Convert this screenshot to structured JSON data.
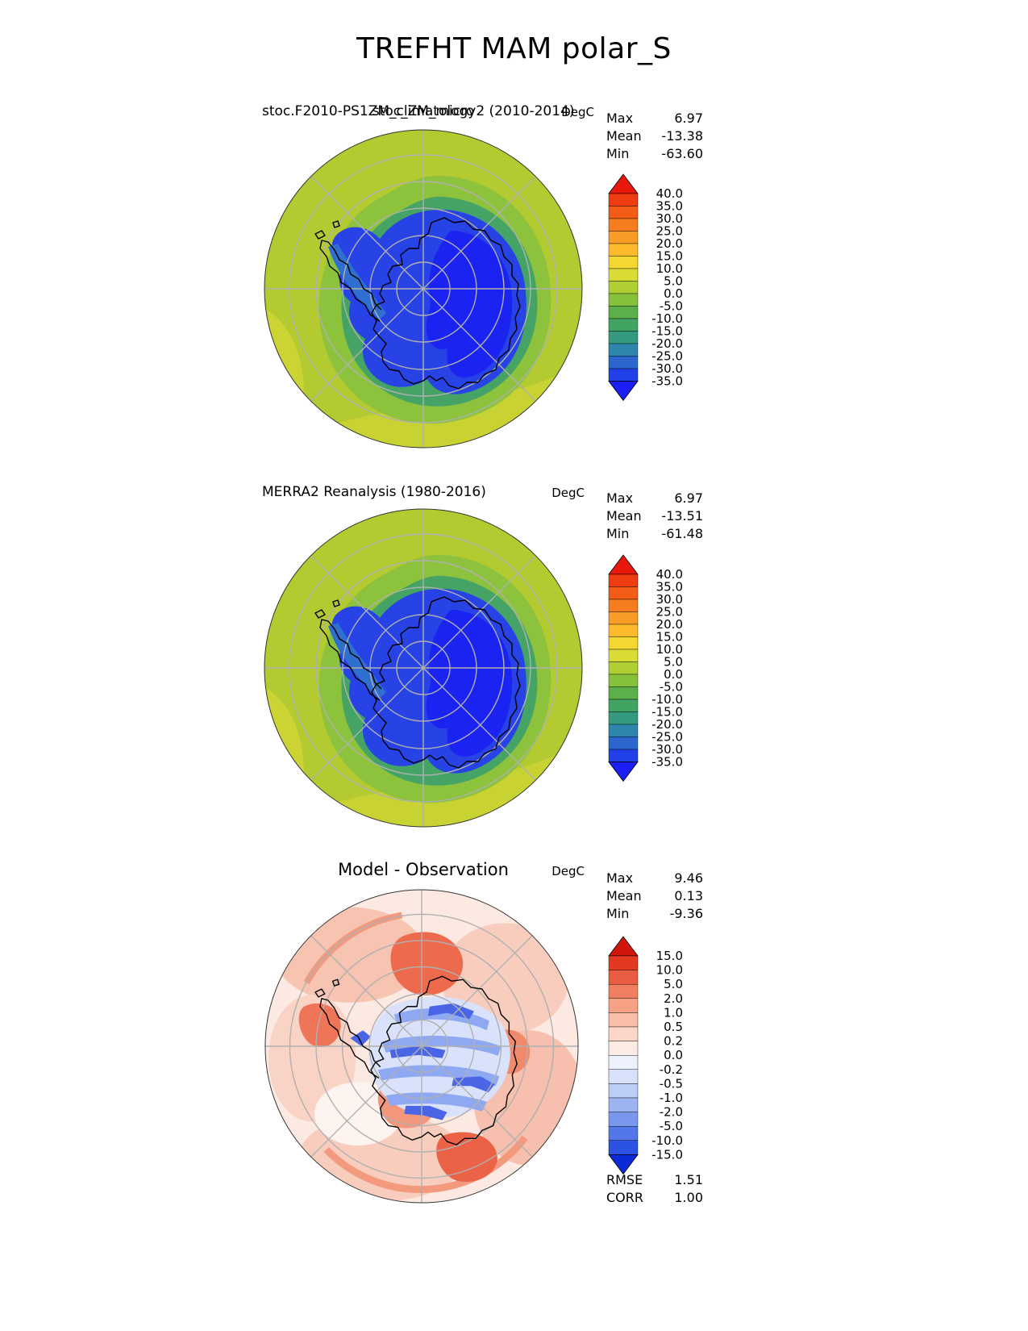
{
  "figure": {
    "title": "TREFHT MAM polar_S"
  },
  "panels": [
    {
      "id": "model",
      "title": "stoc.F2010-PS1ZM_climatology2 (2010-2014)",
      "overlay_title": "stoc_ZM_micro",
      "units": "DegC",
      "stats": [
        {
          "label": "Max",
          "value": "6.97"
        },
        {
          "label": "Mean",
          "value": "-13.38"
        },
        {
          "label": "Min",
          "value": "-63.60"
        }
      ],
      "colorbar": {
        "seg_h": 15.5,
        "ticks": [
          "40.0",
          "35.0",
          "30.0",
          "25.0",
          "20.0",
          "15.0",
          "10.0",
          "5.0",
          "0.0",
          "-5.0",
          "-10.0",
          "-15.0",
          "-20.0",
          "-25.0",
          "-30.0",
          "-35.0"
        ],
        "colors": [
          "#e8190b",
          "#ee3b10",
          "#f35c16",
          "#f67c1d",
          "#f99c25",
          "#fbbb2c",
          "#f5d732",
          "#d8dc35",
          "#b0cf33",
          "#86c13c",
          "#5cb04a",
          "#42a463",
          "#369a80",
          "#2f86ad",
          "#2a66cc",
          "#2140e8",
          "#1b1ef5"
        ]
      }
    },
    {
      "id": "reference",
      "title": "MERRA2 Reanalysis (1980-2016)",
      "units": "DegC",
      "stats": [
        {
          "label": "Max",
          "value": "6.97"
        },
        {
          "label": "Mean",
          "value": "-13.51"
        },
        {
          "label": "Min",
          "value": "-61.48"
        }
      ],
      "colorbar": {
        "seg_h": 15.5,
        "ticks": [
          "40.0",
          "35.0",
          "30.0",
          "25.0",
          "20.0",
          "15.0",
          "10.0",
          "5.0",
          "0.0",
          "-5.0",
          "-10.0",
          "-15.0",
          "-20.0",
          "-25.0",
          "-30.0",
          "-35.0"
        ],
        "colors": [
          "#e8190b",
          "#ee3b10",
          "#f35c16",
          "#f67c1d",
          "#f99c25",
          "#fbbb2c",
          "#f5d732",
          "#d8dc35",
          "#b0cf33",
          "#86c13c",
          "#5cb04a",
          "#42a463",
          "#369a80",
          "#2f86ad",
          "#2a66cc",
          "#2140e8",
          "#1b1ef5"
        ]
      }
    },
    {
      "id": "difference",
      "title": "Model - Observation",
      "units": "DegC",
      "stats": [
        {
          "label": "Max",
          "value": "9.46"
        },
        {
          "label": "Mean",
          "value": "0.13"
        },
        {
          "label": "Min",
          "value": "-9.36"
        }
      ],
      "colorbar": {
        "seg_h": 17.6,
        "ticks": [
          "15.0",
          "10.0",
          "5.0",
          "2.0",
          "1.0",
          "0.5",
          "0.2",
          "0.0",
          "-0.2",
          "-0.5",
          "-1.0",
          "-2.0",
          "-5.0",
          "-10.0",
          "-15.0"
        ],
        "colors": [
          "#d1160c",
          "#e23920",
          "#ea5c41",
          "#f07f62",
          "#f5a183",
          "#f9bfa8",
          "#fbd6c8",
          "#fcebe4",
          "#ecf1fc",
          "#d7e2fa",
          "#bccdf7",
          "#9db4f3",
          "#7a97ee",
          "#5377e8",
          "#2b52e2",
          "#0d2ad8"
        ]
      },
      "metrics": [
        {
          "label": "RMSE",
          "value": "1.51"
        },
        {
          "label": "CORR",
          "value": "1.00"
        }
      ]
    }
  ],
  "chart_data": [
    {
      "type": "heatmap",
      "subtype": "south-polar-stereographic-map",
      "variable": "TREFHT",
      "season": "MAM",
      "region": "polar_S",
      "title": "stoc.F2010-PS1ZM_climatology2 (2010-2014)",
      "overlay_title": "stoc_ZM_micro",
      "units": "DegC",
      "stats": {
        "max": 6.97,
        "mean": -13.38,
        "min": -63.6
      },
      "contour_levels": [
        -35,
        -30,
        -25,
        -20,
        -15,
        -10,
        -5,
        0,
        5,
        10,
        15,
        20,
        25,
        30,
        35,
        40
      ],
      "colormap_top_to_bottom": [
        "#e8190b",
        "#ee3b10",
        "#f35c16",
        "#f67c1d",
        "#f99c25",
        "#fbbb2c",
        "#f5d732",
        "#d8dc35",
        "#b0cf33",
        "#86c13c",
        "#5cb04a",
        "#42a463",
        "#369a80",
        "#2f86ad",
        "#2a66cc",
        "#2140e8",
        "#1b1ef5"
      ],
      "legend_position": "right",
      "features": "Antarctic continent below -35 DegC (blue), surrounding Southern Ocean 0-5 DegC (yellow-green), graticule circles and 45-degree meridians in gray, black coastline"
    },
    {
      "type": "heatmap",
      "subtype": "south-polar-stereographic-map",
      "variable": "TREFHT",
      "season": "MAM",
      "region": "polar_S",
      "title": "MERRA2 Reanalysis (1980-2016)",
      "units": "DegC",
      "stats": {
        "max": 6.97,
        "mean": -13.51,
        "min": -61.48
      },
      "contour_levels": [
        -35,
        -30,
        -25,
        -20,
        -15,
        -10,
        -5,
        0,
        5,
        10,
        15,
        20,
        25,
        30,
        35,
        40
      ],
      "colormap_top_to_bottom": [
        "#e8190b",
        "#ee3b10",
        "#f35c16",
        "#f67c1d",
        "#f99c25",
        "#fbbb2c",
        "#f5d732",
        "#d8dc35",
        "#b0cf33",
        "#86c13c",
        "#5cb04a",
        "#42a463",
        "#369a80",
        "#2f86ad",
        "#2a66cc",
        "#2140e8",
        "#1b1ef5"
      ],
      "legend_position": "right",
      "features": "Same spatial pattern as model panel: cold blue Antarctic interior, yellow-green ocean ring"
    },
    {
      "type": "heatmap",
      "subtype": "south-polar-stereographic-difference-map",
      "variable": "TREFHT model minus observation",
      "season": "MAM",
      "region": "polar_S",
      "title": "Model - Observation",
      "units": "DegC",
      "stats": {
        "max": 9.46,
        "mean": 0.13,
        "min": -9.36
      },
      "metrics": {
        "rmse": 1.51,
        "corr": 1.0
      },
      "contour_levels": [
        -15,
        -10,
        -5,
        -2,
        -1,
        -0.5,
        -0.2,
        0,
        0.2,
        0.5,
        1,
        2,
        5,
        10,
        15
      ],
      "colormap_top_to_bottom": [
        "#d1160c",
        "#e23920",
        "#ea5c41",
        "#f07f62",
        "#f5a183",
        "#f9bfa8",
        "#fbd6c8",
        "#fcebe4",
        "#ecf1fc",
        "#d7e2fa",
        "#bccdf7",
        "#9db4f3",
        "#7a97ee",
        "#5377e8",
        "#2b52e2",
        "#0d2ad8"
      ],
      "legend_position": "right",
      "features": "Mostly light pink (small warm bias) over ocean with stronger red patches near rim and south of continent; mottled blue stripes (cool bias) over Antarctic continent; black coastline; gray graticule"
    }
  ]
}
